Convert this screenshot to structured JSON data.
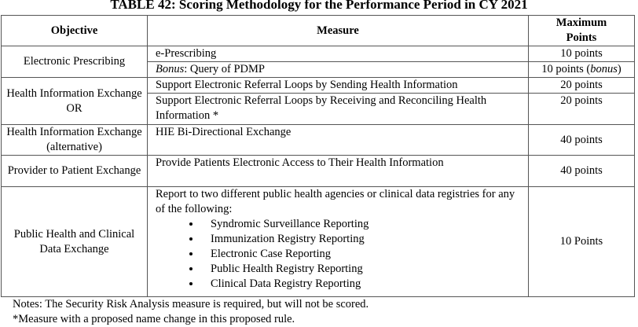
{
  "title": "TABLE 42:  Scoring Methodology for the Performance Period in CY 2021",
  "header": [
    "Objective",
    "Measure",
    "Maximum Points"
  ],
  "rows": [
    {
      "objective": [
        "Electronic Prescribing"
      ],
      "measures": [
        {
          "measure": "e-Prescribing",
          "points": "10 points"
        },
        {
          "measure": [
            {
              "text": "Bonus",
              "italic": true
            },
            {
              "text": ": Query of PDMP"
            }
          ],
          "points": [
            {
              "text": "10 points ("
            },
            {
              "text": "bonus",
              "italic": true
            },
            {
              "text": ")"
            }
          ]
        }
      ]
    },
    {
      "objective": [
        "Health Information Exchange",
        "OR"
      ],
      "measures": [
        {
          "measure": "Support Electronic Referral Loops by Sending Health Information",
          "points": "20 points"
        },
        {
          "measure": "Support Electronic Referral Loops by Receiving and Reconciling Health Information *",
          "points": "20 points"
        }
      ]
    },
    {
      "objective": [
        "Health Information Exchange (alternative)"
      ],
      "measures": [
        {
          "measure": "HIE  Bi-Directional Exchange",
          "points": "40 points"
        }
      ]
    },
    {
      "objective": [
        "Provider to Patient Exchange"
      ],
      "measures": [
        {
          "measure": "Provide Patients Electronic Access to Their Health Information",
          "points": "40 points"
        }
      ]
    },
    {
      "objective": [
        "Public Health and Clinical Data Exchange"
      ],
      "measures": [
        {
          "measure": "Report to two different public health agencies or clinical data registries for any of the following:",
          "bullets": [
            "Syndromic Surveillance Reporting",
            "Immunization Registry Reporting",
            "Electronic Case Reporting",
            "Public Health Registry Reporting",
            "Clinical Data Registry Reporting"
          ],
          "points": "10 Points"
        }
      ]
    }
  ],
  "notes": [
    "Notes: The Security Risk Analysis measure is required, but will not be scored.",
    "*Measure with a proposed name change in this proposed rule."
  ]
}
